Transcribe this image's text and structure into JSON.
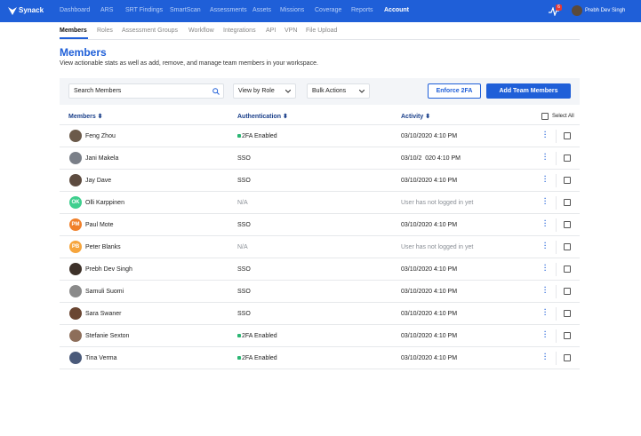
{
  "header": {
    "logo": "Synack",
    "nav": [
      "Dashboard",
      "ARS",
      "SRT Findings",
      "SmartScan",
      "Assessments",
      "Assets",
      "Missions",
      "Coverage",
      "Reports",
      "Account"
    ],
    "active_nav": 9,
    "notification_count": "6",
    "user": "Prebh Dev Singh"
  },
  "subnav": {
    "items": [
      "Members",
      "Roles",
      "Assessment Groups",
      "Workflow",
      "Integrations",
      "API",
      "VPN",
      "File Upload"
    ],
    "active": 0
  },
  "page": {
    "title": "Members",
    "subtitle": "View actionable stats as well as add, remove, and manage team members in your workspace."
  },
  "toolbar": {
    "search_placeholder": "Search Members",
    "view_by": "View by Role",
    "bulk_actions": "Bulk Actions",
    "enforce_button": "Enforce 2FA",
    "add_button": "Add Team Members"
  },
  "table": {
    "columns": [
      "Members",
      "Authentication",
      "Activity"
    ],
    "select_all": "Select All",
    "rows": [
      {
        "name": "Feng Zhou",
        "auth": "2FA Enabled",
        "activity": "03/10/2020 4:10 PM"
      },
      {
        "name": "Jani Makela",
        "auth": "SSO",
        "activity": "03/10/2  020 4:10 PM"
      },
      {
        "name": "Jay Dave",
        "auth": "SSO",
        "activity": "03/10/2020 4:10 PM"
      },
      {
        "name": "Olli Karppinen",
        "initials": "OK",
        "auth": "N/A",
        "activity": "User has not logged in yet"
      },
      {
        "name": "Paul Mote",
        "initials": "PM",
        "auth": "SSO",
        "activity": "03/10/2020 4:10 PM"
      },
      {
        "name": "Peter Blanks",
        "initials": "PB",
        "auth": "N/A",
        "activity": "User has not logged in yet"
      },
      {
        "name": "Prebh Dev Singh",
        "auth": "SSO",
        "activity": "03/10/2020 4:10 PM"
      },
      {
        "name": "Samuli Suomi",
        "auth": "SSO",
        "activity": "03/10/2020 4:10 PM"
      },
      {
        "name": "Sara Swaner",
        "auth": "SSO",
        "activity": "03/10/2020 4:10 PM"
      },
      {
        "name": "Stefanie Sexton",
        "auth": "2FA Enabled",
        "activity": "03/10/2020 4:10 PM"
      },
      {
        "name": "Tina Verma",
        "auth": "2FA Enabled",
        "activity": "03/10/2020 4:10 PM"
      }
    ]
  }
}
